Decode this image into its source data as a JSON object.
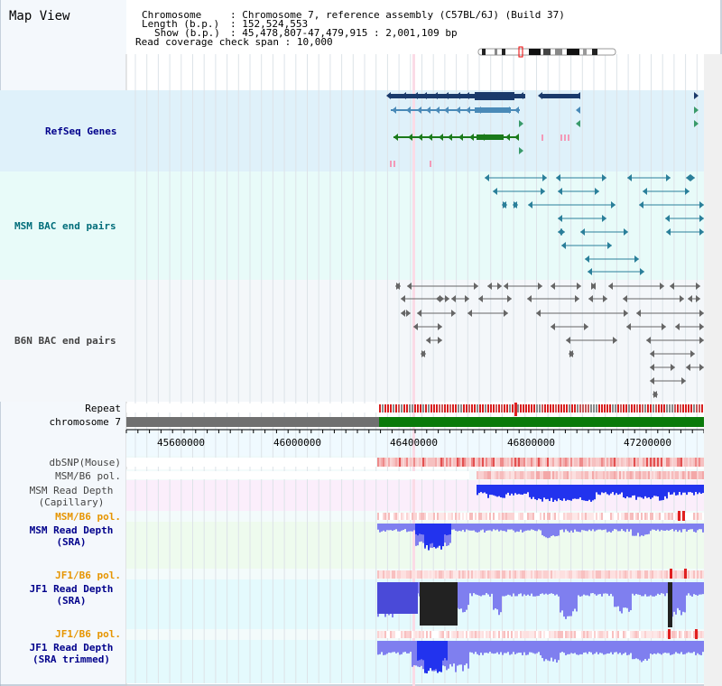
{
  "view_title": "Map View",
  "info": {
    "chromosome_label": "Chromosome",
    "chromosome_value": "Chromosome 7, reference assembly (C57BL/6J) (Build 37)",
    "length_label": "Length (b.p.)",
    "length_value": "152,524,553",
    "show_label": "Show (b.p.)",
    "show_value": "45,478,807-47,479,915 : 2,001,109 bp",
    "coverage_label": "Read coverage check span",
    "coverage_value": "10,000"
  },
  "tracks": {
    "refseq": "RefSeq Genes",
    "msm_bac": "MSM BAC end pairs",
    "b6n_bac": "B6N BAC end pairs",
    "repeat": "Repeat",
    "chromosome": "chromosome 7",
    "dbsnp": "dbSNP(Mouse)",
    "msm_b6_pol_1": "MSM/B6 pol.",
    "msm_rd_cap_1": "MSM Read Depth",
    "msm_rd_cap_2": "(Capillary)",
    "msm_b6_pol_2": "MSM/B6 pol.",
    "msm_rd_sra_1": "MSM Read Depth",
    "msm_rd_sra_2": "(SRA)",
    "jf1_b6_pol_1": "JF1/B6 pol.",
    "jf1_rd_sra_1": "JF1 Read Depth",
    "jf1_rd_sra_2": "(SRA)",
    "jf1_b6_pol_2": "JF1/B6 pol.",
    "jf1_rd_trim_1": "JF1 Read Depth",
    "jf1_rd_trim_2": "(SRA trimmed)"
  },
  "ruler_ticks": [
    "45600000",
    "46000000",
    "46400000",
    "46800000",
    "47200000"
  ],
  "colors": {
    "label_blue": "#00008b",
    "label_teal": "#006d7a",
    "label_gray": "#444444",
    "label_orange": "#e69500",
    "refseq_bg": "#dff1fa",
    "bac_bg": "#e8fbf9",
    "b6n_bg": "#f4f7fa",
    "gene_navy": "#1a3a6b",
    "gene_steel": "#4a8ab8",
    "gene_green": "#1a7a1a",
    "depth_blue": "#2233ee",
    "depth_light": "#7f7fef",
    "chrom_gray": "#707070",
    "chrom_green": "#0a7a0a"
  }
}
